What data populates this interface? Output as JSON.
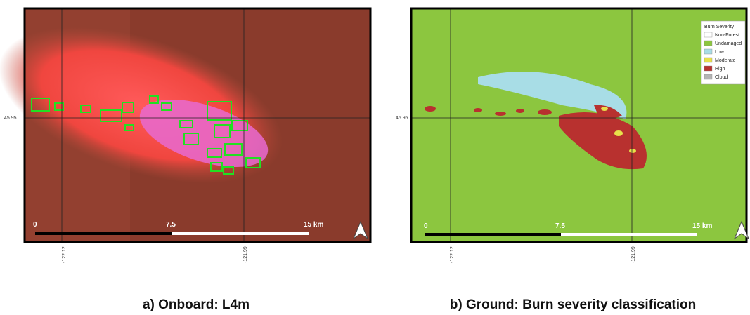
{
  "panels": [
    {
      "caption": "a) Onboard: L4m",
      "lat_label": "45.95",
      "lon_labels": [
        "-122.12",
        "-121.99"
      ],
      "scale_labels": [
        "0",
        "7.5",
        "15 km"
      ]
    },
    {
      "caption": "b) Ground: Burn severity classification",
      "lat_label": "45.95",
      "lon_labels": [
        "-122.12",
        "-121.99"
      ],
      "scale_labels": [
        "0",
        "7.5",
        "15 km"
      ],
      "legend": {
        "title": "Burn Severity",
        "items": [
          {
            "label": "Non-Forest",
            "color": "#ffffff"
          },
          {
            "label": "Undamaged",
            "color": "#8cc63f"
          },
          {
            "label": "Low",
            "color": "#a8dde6"
          },
          {
            "label": "Moderate",
            "color": "#e8e04a"
          },
          {
            "label": "High",
            "color": "#b8312f"
          },
          {
            "label": "Cloud",
            "color": "#b4b4b4"
          }
        ]
      }
    }
  ]
}
